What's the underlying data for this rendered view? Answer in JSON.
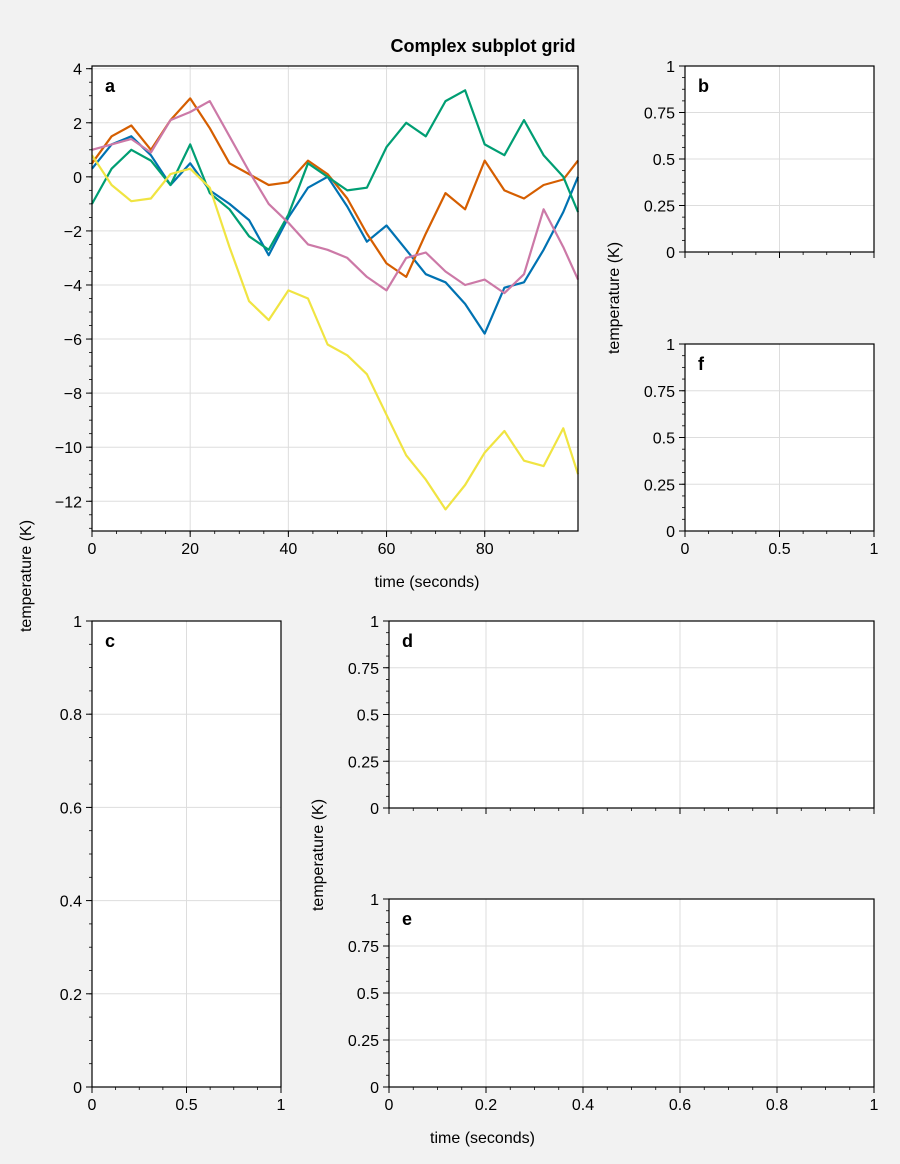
{
  "figure": {
    "title": "Complex subplot grid",
    "left_ylabel": "temperature (K)"
  },
  "chart_data": [
    {
      "panel": "a",
      "type": "line",
      "xlabel": "time (seconds)",
      "ylabel": "",
      "xlim": [
        0,
        99
      ],
      "ylim": [
        -13.1,
        4.1
      ],
      "xticks": [
        0,
        20,
        40,
        60,
        80
      ],
      "xticklabels": [
        "0",
        "20",
        "40",
        "60",
        "80"
      ],
      "yticks": [
        4,
        2,
        0,
        -2,
        -4,
        -6,
        -8,
        -10,
        -12
      ],
      "yticklabels": [
        "4",
        "2",
        "0",
        "−2",
        "−4",
        "−6",
        "−8",
        "−10",
        "−12"
      ],
      "grid": true,
      "series": [
        {
          "color": "#0072b2",
          "x": [
            0,
            4,
            8,
            12,
            16,
            20,
            24,
            28,
            32,
            36,
            40,
            44,
            48,
            52,
            56,
            60,
            64,
            68,
            72,
            76,
            80,
            84,
            88,
            92,
            96,
            99
          ],
          "values": [
            0.3,
            1.2,
            1.5,
            0.8,
            -0.3,
            0.5,
            -0.5,
            -1.0,
            -1.6,
            -2.9,
            -1.5,
            -0.4,
            0.0,
            -1.1,
            -2.4,
            -1.8,
            -2.7,
            -3.6,
            -3.9,
            -4.7,
            -5.8,
            -4.1,
            -3.9,
            -2.7,
            -1.3,
            0.0
          ]
        },
        {
          "color": "#d55e00",
          "x": [
            0,
            4,
            8,
            12,
            16,
            20,
            24,
            28,
            32,
            36,
            40,
            44,
            48,
            52,
            56,
            60,
            64,
            68,
            72,
            76,
            80,
            84,
            88,
            92,
            96,
            99
          ],
          "values": [
            0.5,
            1.5,
            1.9,
            1.0,
            2.1,
            2.9,
            1.8,
            0.5,
            0.1,
            -0.3,
            -0.2,
            0.6,
            0.1,
            -0.8,
            -2.1,
            -3.2,
            -3.7,
            -2.1,
            -0.6,
            -1.2,
            0.6,
            -0.5,
            -0.8,
            -0.3,
            -0.1,
            0.6
          ]
        },
        {
          "color": "#009e73",
          "x": [
            0,
            4,
            8,
            12,
            16,
            20,
            24,
            28,
            32,
            36,
            40,
            44,
            48,
            52,
            56,
            60,
            64,
            68,
            72,
            76,
            80,
            84,
            88,
            92,
            96,
            99
          ],
          "values": [
            -1.0,
            0.3,
            1.0,
            0.6,
            -0.3,
            1.2,
            -0.6,
            -1.2,
            -2.2,
            -2.7,
            -1.4,
            0.5,
            0.0,
            -0.5,
            -0.4,
            1.1,
            2.0,
            1.5,
            2.8,
            3.2,
            1.2,
            0.8,
            2.1,
            0.8,
            0.0,
            -1.3
          ]
        },
        {
          "color": "#cc79a7",
          "x": [
            0,
            4,
            8,
            12,
            16,
            20,
            24,
            28,
            32,
            36,
            40,
            44,
            48,
            52,
            56,
            60,
            64,
            68,
            72,
            76,
            80,
            84,
            88,
            92,
            96,
            99
          ],
          "values": [
            1.0,
            1.2,
            1.4,
            0.9,
            2.1,
            2.4,
            2.8,
            1.5,
            0.2,
            -1.0,
            -1.7,
            -2.5,
            -2.7,
            -3.0,
            -3.7,
            -4.2,
            -3.0,
            -2.8,
            -3.5,
            -4.0,
            -3.8,
            -4.3,
            -3.6,
            -1.2,
            -2.6,
            -3.8
          ]
        },
        {
          "color": "#f0e442",
          "x": [
            0,
            4,
            8,
            12,
            16,
            20,
            24,
            28,
            32,
            36,
            40,
            44,
            48,
            52,
            56,
            60,
            64,
            68,
            72,
            76,
            80,
            84,
            88,
            92,
            96,
            99
          ],
          "values": [
            0.8,
            -0.3,
            -0.9,
            -0.8,
            0.1,
            0.3,
            -0.4,
            -2.6,
            -4.6,
            -5.3,
            -4.2,
            -4.5,
            -6.2,
            -6.6,
            -7.3,
            -8.8,
            -10.3,
            -11.2,
            -12.3,
            -11.4,
            -10.2,
            -9.4,
            -10.5,
            -10.7,
            -9.3,
            -11.0
          ]
        }
      ]
    },
    {
      "panel": "b",
      "type": "line",
      "xlabel": "",
      "ylabel": "",
      "xlim": [
        0,
        1
      ],
      "ylim": [
        0,
        1
      ],
      "xticks": [
        0,
        0.5,
        1
      ],
      "xticklabels": [
        "",
        "",
        ""
      ],
      "yticks": [
        0,
        0.25,
        0.5,
        0.75,
        1
      ],
      "yticklabels": [
        "0",
        "0.25",
        "0.5",
        "0.75",
        "1"
      ],
      "grid": true,
      "series": []
    },
    {
      "panel": "f",
      "type": "line",
      "xlabel": "",
      "ylabel": "",
      "xlim": [
        0,
        1
      ],
      "ylim": [
        0,
        1
      ],
      "xticks": [
        0,
        0.5,
        1
      ],
      "xticklabels": [
        "0",
        "0.5",
        "1"
      ],
      "yticks": [
        0,
        0.25,
        0.5,
        0.75,
        1
      ],
      "yticklabels": [
        "0",
        "0.25",
        "0.5",
        "0.75",
        "1"
      ],
      "grid": true,
      "series": []
    },
    {
      "panel": "c",
      "type": "line",
      "xlabel": "",
      "ylabel": "",
      "xlim": [
        0,
        1
      ],
      "ylim": [
        0,
        1
      ],
      "xticks": [
        0,
        0.5,
        1
      ],
      "xticklabels": [
        "0",
        "0.5",
        "1"
      ],
      "yticks": [
        0,
        0.2,
        0.4,
        0.6,
        0.8,
        1
      ],
      "yticklabels": [
        "0",
        "0.2",
        "0.4",
        "0.6",
        "0.8",
        "1"
      ],
      "grid": true,
      "series": []
    },
    {
      "panel": "d",
      "type": "line",
      "xlabel": "",
      "ylabel": "",
      "xlim": [
        0,
        1
      ],
      "ylim": [
        0,
        1
      ],
      "xticks": [
        0,
        0.2,
        0.4,
        0.6,
        0.8,
        1
      ],
      "xticklabels": [
        "",
        "",
        "",
        "",
        "",
        ""
      ],
      "yticks": [
        0,
        0.25,
        0.5,
        0.75,
        1
      ],
      "yticklabels": [
        "0",
        "0.25",
        "0.5",
        "0.75",
        "1"
      ],
      "grid": true,
      "series": []
    },
    {
      "panel": "e",
      "type": "line",
      "xlabel": "time (seconds)",
      "ylabel": "",
      "xlim": [
        0,
        1
      ],
      "ylim": [
        0,
        1
      ],
      "xticks": [
        0,
        0.2,
        0.4,
        0.6,
        0.8,
        1
      ],
      "xticklabels": [
        "0",
        "0.2",
        "0.4",
        "0.6",
        "0.8",
        "1"
      ],
      "yticks": [
        0,
        0.25,
        0.5,
        0.75,
        1
      ],
      "yticklabels": [
        "0",
        "0.25",
        "0.5",
        "0.75",
        "1"
      ],
      "grid": true,
      "series": []
    }
  ],
  "right_top_ylabel": "temperature (K)",
  "right_bottom_ylabel": "temperature (K)"
}
